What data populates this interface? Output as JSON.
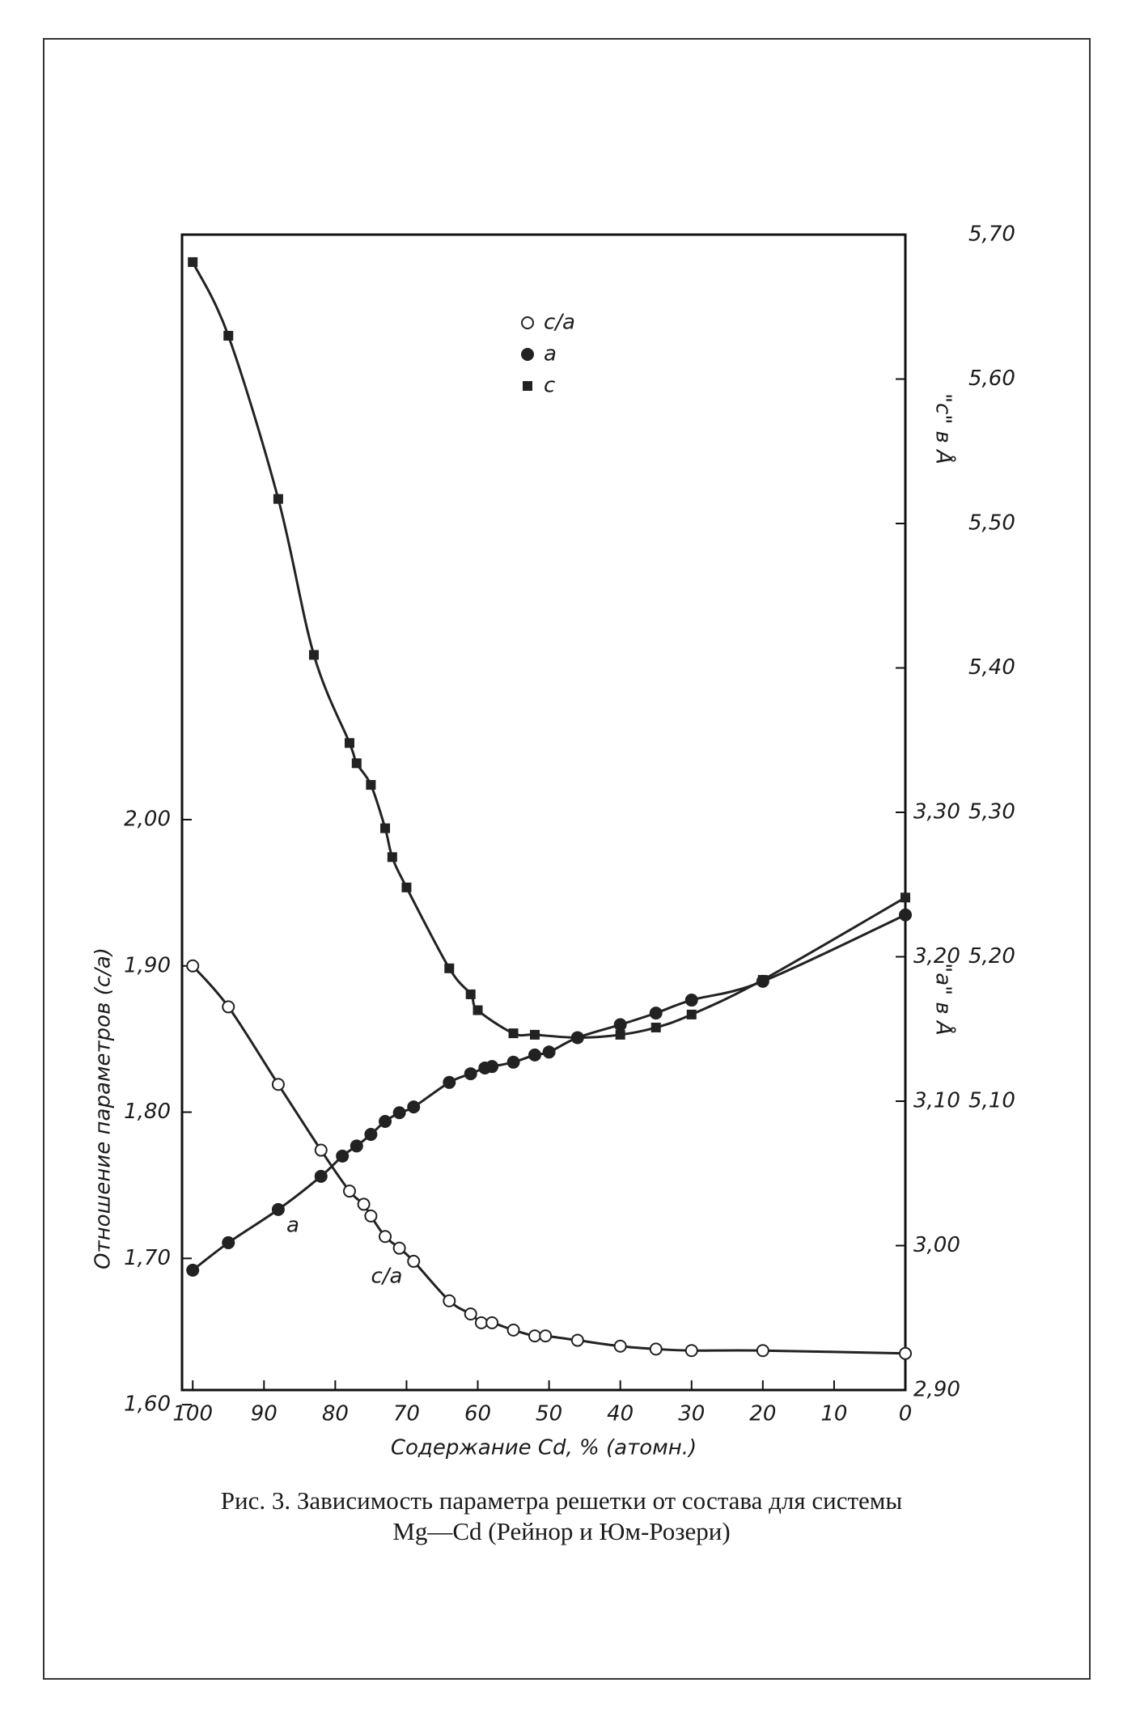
{
  "chart_data": {
    "type": "line",
    "xlabel": "Содержание Cd, % (атомн.)",
    "ylabel": "Отношение параметров  (c/a)",
    "y2label": "\"a\" в Å",
    "y3label": "\"c\" в Å",
    "caption": [
      "Рис. 3. Зависимость параметра решетки от состава для системы",
      "Mg—Cd (Рейнор и Юм-Розери)"
    ],
    "annotations": [
      "a",
      "c/a"
    ],
    "xlim": [
      101.5,
      0
    ],
    "xticks": [
      100,
      90,
      80,
      70,
      60,
      50,
      40,
      30,
      20,
      10,
      0
    ],
    "ylim": [
      1.61,
      2.4
    ],
    "yticks": [
      {
        "value": 1.6,
        "label": "1,60"
      },
      {
        "value": 1.7,
        "label": "1,70"
      },
      {
        "value": 1.8,
        "label": "1,80"
      },
      {
        "value": 1.9,
        "label": "1,90"
      },
      {
        "value": 2.0,
        "label": "2,00"
      }
    ],
    "y2lim": [
      2.9,
      3.7
    ],
    "y2ticks": [
      {
        "value": 2.9,
        "label": "2,90"
      },
      {
        "value": 3.0,
        "label": "3,00"
      },
      {
        "value": 3.1,
        "label": "3,10"
      },
      {
        "value": 3.2,
        "label": "3,20"
      },
      {
        "value": 3.3,
        "label": "3,30"
      }
    ],
    "y3lim": [
      4.9,
      5.7
    ],
    "y3ticks": [
      {
        "value": 5.1,
        "label": "5,10"
      },
      {
        "value": 5.2,
        "label": "5,20"
      },
      {
        "value": 5.3,
        "label": "5,30"
      },
      {
        "value": 5.4,
        "label": "5,40"
      },
      {
        "value": 5.5,
        "label": "5,50"
      },
      {
        "value": 5.6,
        "label": "5,60"
      },
      {
        "value": 5.7,
        "label": "5,70"
      }
    ],
    "series": [
      {
        "name": "c/a",
        "marker": "open-circle",
        "color": "#222",
        "x": [
          100,
          95,
          88,
          82,
          78,
          76,
          75,
          73,
          71,
          69,
          64,
          61,
          59.5,
          58,
          55,
          52,
          50.5,
          46,
          40,
          35,
          30,
          20,
          0
        ],
        "values": [
          1.9,
          1.872,
          1.819,
          1.774,
          1.746,
          1.737,
          1.729,
          1.715,
          1.707,
          1.698,
          1.671,
          1.662,
          1.656,
          1.656,
          1.651,
          1.647,
          1.647,
          1.644,
          1.64,
          1.638,
          1.637,
          1.637,
          1.635
        ]
      },
      {
        "name": "a",
        "marker": "filled-circle",
        "color": "#222",
        "axis": "y2",
        "x": [
          100,
          95,
          88,
          82,
          79,
          77,
          75,
          73,
          71,
          69,
          64,
          61,
          59,
          58,
          55,
          52,
          50,
          46,
          40,
          35,
          30,
          20,
          0
        ],
        "values": [
          2.983,
          3.002,
          3.025,
          3.048,
          3.062,
          3.069,
          3.077,
          3.086,
          3.092,
          3.096,
          3.113,
          3.119,
          3.123,
          3.124,
          3.127,
          3.132,
          3.134,
          3.144,
          3.153,
          3.161,
          3.17,
          3.183,
          3.229
        ]
      },
      {
        "name": "c",
        "marker": "square",
        "color": "#222",
        "axis": "y3",
        "x": [
          100,
          95,
          88,
          83,
          78,
          77,
          75,
          73,
          72,
          70,
          64,
          61,
          60,
          55,
          52,
          46,
          40,
          35,
          30,
          20,
          0
        ],
        "values": [
          5.681,
          5.63,
          5.517,
          5.409,
          5.348,
          5.334,
          5.319,
          5.289,
          5.269,
          5.248,
          5.192,
          5.174,
          5.163,
          5.147,
          5.146,
          5.144,
          5.146,
          5.151,
          5.16,
          5.184,
          5.241
        ]
      }
    ]
  }
}
